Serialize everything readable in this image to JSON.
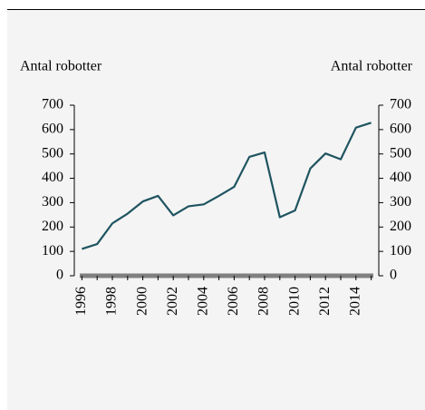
{
  "chart_data": {
    "type": "line",
    "ylabel": "Antal robotter",
    "y2label": "Antal robotter",
    "x": [
      1996,
      1997,
      1998,
      1999,
      2000,
      2001,
      2002,
      2003,
      2004,
      2005,
      2006,
      2007,
      2008,
      2009,
      2010,
      2011,
      2012,
      2013,
      2014,
      2015
    ],
    "series": [
      {
        "name": "Antal robotter",
        "color": "#1f5460",
        "values": [
          110,
          130,
          215,
          255,
          305,
          328,
          248,
          285,
          293,
          328,
          365,
          488,
          506,
          240,
          268,
          440,
          502,
          478,
          608,
          628
        ]
      }
    ],
    "xlim": [
      1995.5,
      2015.5
    ],
    "xticks": [
      1996,
      1998,
      2000,
      2002,
      2004,
      2006,
      2008,
      2010,
      2012,
      2014
    ],
    "ylim": [
      0,
      700
    ],
    "yticks": [
      0,
      100,
      200,
      300,
      400,
      500,
      600,
      700
    ],
    "y2lim": [
      0,
      700
    ],
    "y2ticks": [
      0,
      100,
      200,
      300,
      400,
      500,
      600,
      700
    ]
  }
}
